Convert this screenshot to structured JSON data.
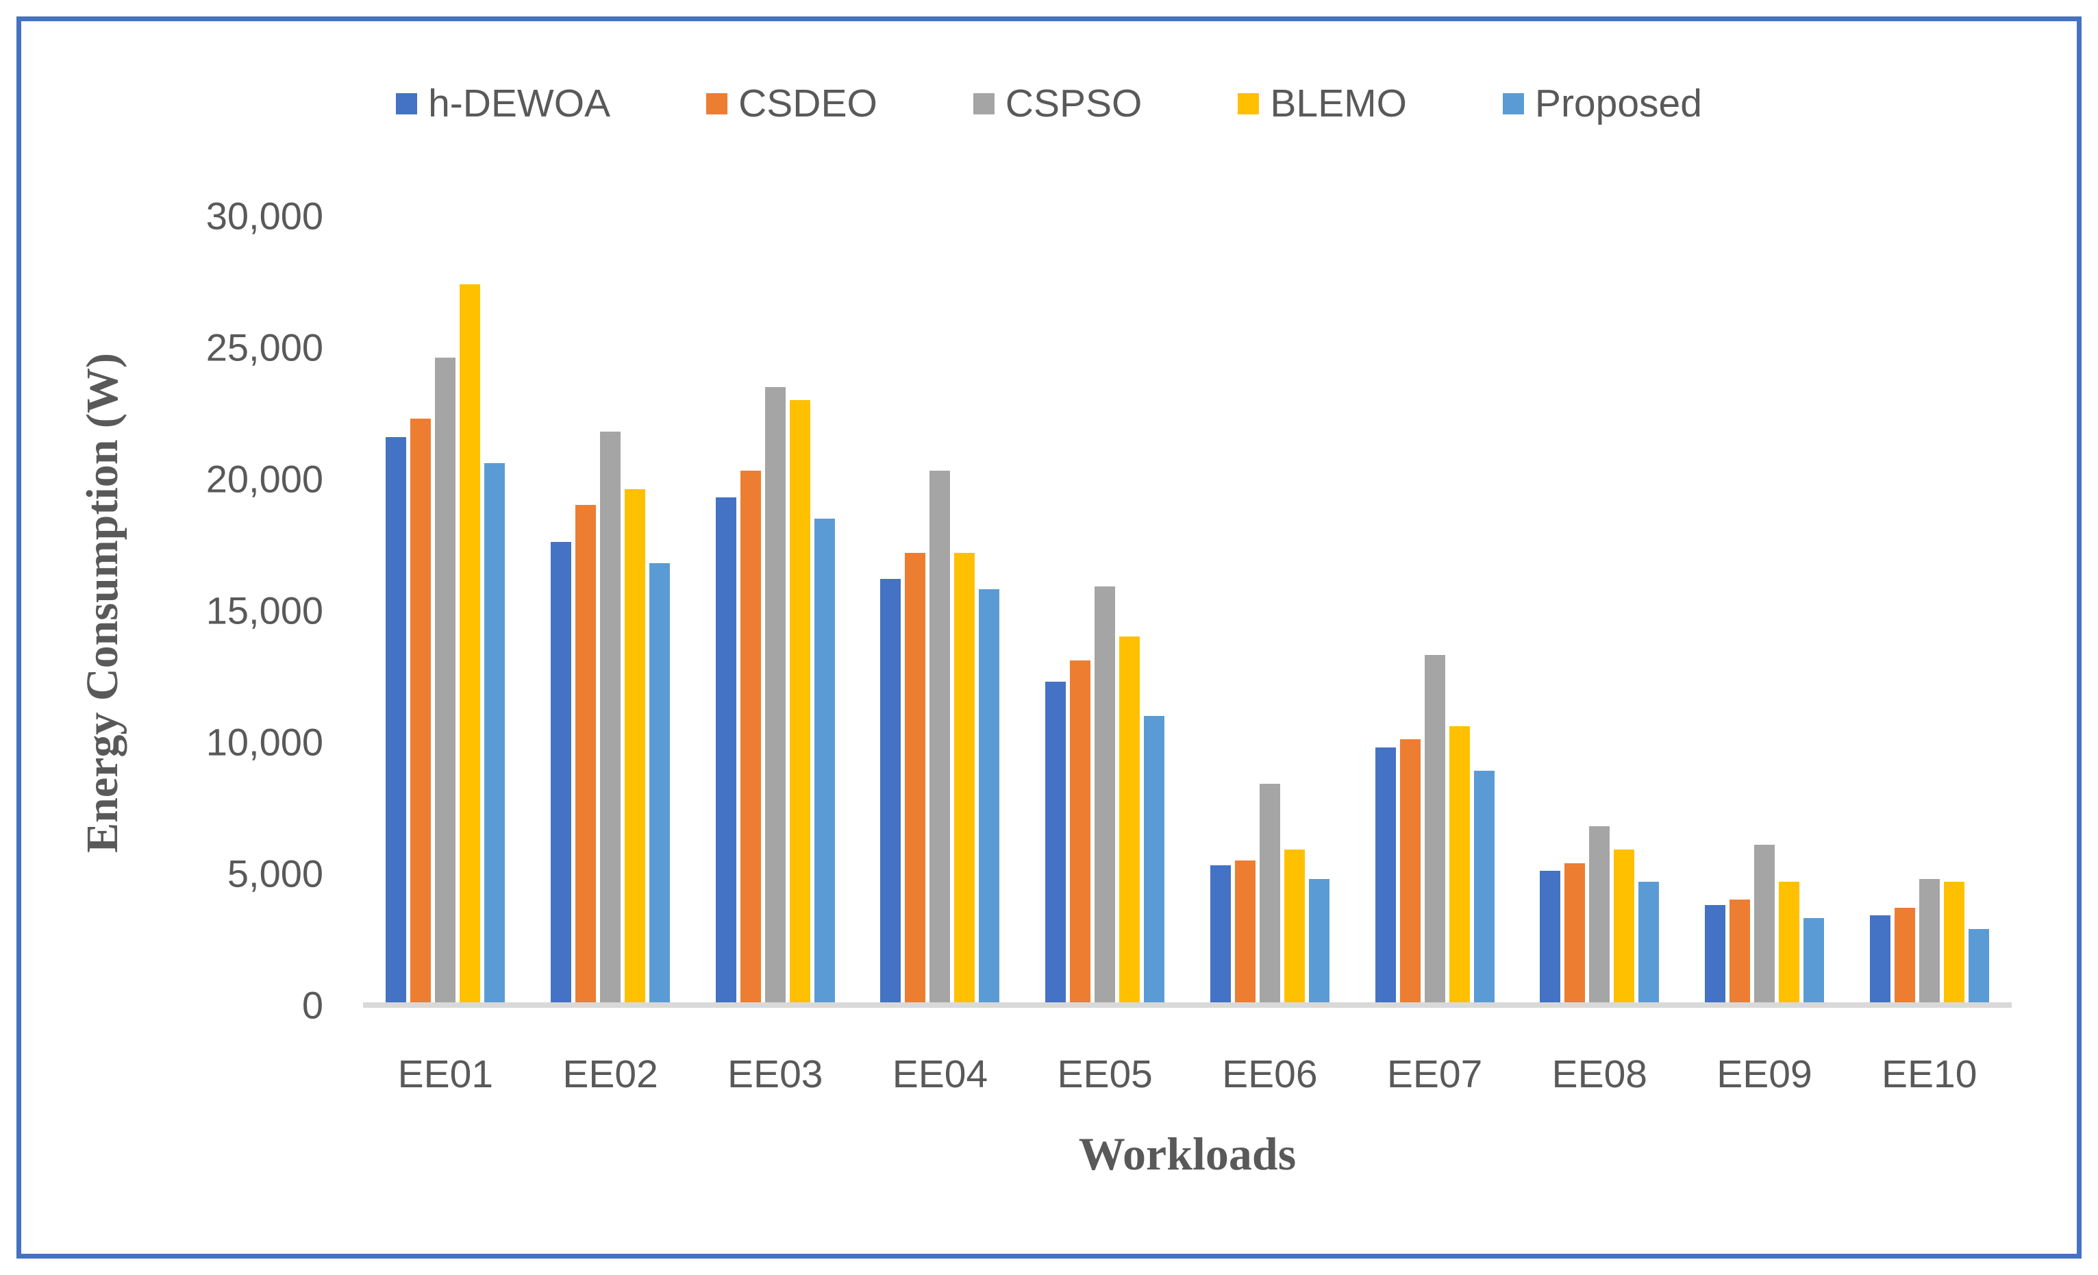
{
  "figure": {
    "border_color": "#4472C4",
    "background_color": "#FFFFFF",
    "axis_line_color": "#D9D9D9",
    "text_color": "#595959"
  },
  "chart_data": {
    "type": "bar",
    "title": "",
    "xlabel": "Workloads",
    "ylabel": "Energy Consumption (W)",
    "categories": [
      "EE01",
      "EE02",
      "EE03",
      "EE04",
      "EE05",
      "EE06",
      "EE07",
      "EE08",
      "EE09",
      "EE10"
    ],
    "series": [
      {
        "name": "h-DEWOA",
        "color": "#4472C4",
        "values": [
          21600,
          17600,
          19300,
          16200,
          12300,
          5300,
          9800,
          5100,
          3800,
          3400
        ]
      },
      {
        "name": "CSDEO",
        "color": "#ED7D31",
        "values": [
          22300,
          19000,
          20300,
          17200,
          13100,
          5500,
          10100,
          5400,
          4000,
          3700
        ]
      },
      {
        "name": "CSPSO",
        "color": "#A5A5A5",
        "values": [
          24600,
          21800,
          23500,
          20300,
          15900,
          8400,
          13300,
          6800,
          6100,
          4800
        ]
      },
      {
        "name": "BLEMO",
        "color": "#FFC000",
        "values": [
          27400,
          19600,
          23000,
          17200,
          14000,
          5900,
          10600,
          5900,
          4700,
          4700
        ]
      },
      {
        "name": "Proposed",
        "color": "#5B9BD5",
        "values": [
          20600,
          16800,
          18500,
          15800,
          11000,
          4800,
          8900,
          4700,
          3300,
          2900
        ]
      }
    ],
    "ylim": [
      0,
      30000
    ],
    "y_tick_step": 5000,
    "y_tick_labels": [
      "0",
      "5,000",
      "10,000",
      "15,000",
      "20,000",
      "25,000",
      "30,000"
    ],
    "legend_position": "top",
    "gridlines": false
  }
}
